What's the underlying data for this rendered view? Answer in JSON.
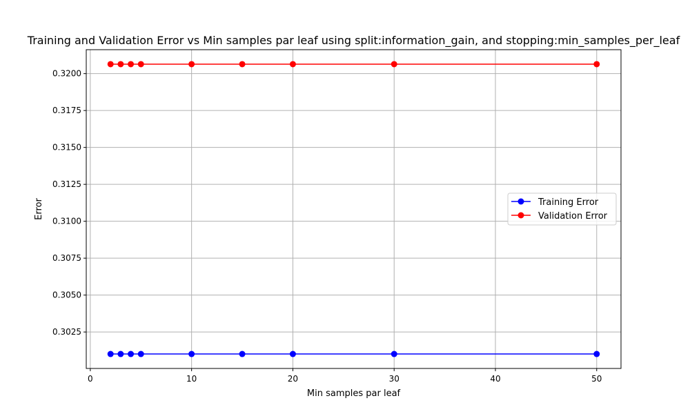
{
  "chart_data": {
    "type": "line",
    "title": "Training and Validation Error vs Min samples par leaf using split:information_gain, and stopping:min_samples_per_leaf",
    "xlabel": "Min samples par leaf",
    "ylabel": "Error",
    "x": [
      2,
      3,
      4,
      5,
      10,
      15,
      20,
      30,
      50
    ],
    "series": [
      {
        "name": "Training Error",
        "color": "#0000ff",
        "marker": "circle",
        "values": [
          0.30101,
          0.30101,
          0.30101,
          0.30101,
          0.30101,
          0.30101,
          0.30101,
          0.30101,
          0.30101
        ]
      },
      {
        "name": "Validation Error",
        "color": "#ff0000",
        "marker": "circle",
        "values": [
          0.32064,
          0.32064,
          0.32064,
          0.32064,
          0.32064,
          0.32064,
          0.32064,
          0.32064,
          0.32064
        ]
      }
    ],
    "xticks": [
      0,
      10,
      20,
      30,
      40,
      50
    ],
    "xtick_labels": [
      "0",
      "10",
      "20",
      "30",
      "40",
      "50"
    ],
    "yticks": [
      0.3025,
      0.305,
      0.3075,
      0.31,
      0.3125,
      0.315,
      0.3175,
      0.32
    ],
    "ytick_labels": [
      "0.3025",
      "0.3050",
      "0.3075",
      "0.3100",
      "0.3125",
      "0.3150",
      "0.3175",
      "0.3200"
    ],
    "xlim": [
      -0.4,
      52.4
    ],
    "ylim": [
      0.30003,
      0.32162
    ],
    "grid": true,
    "legend_position": "center-right"
  }
}
